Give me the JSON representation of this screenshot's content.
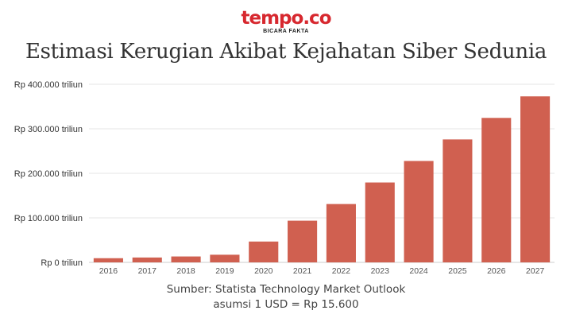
{
  "brand": {
    "name": "tempo.co",
    "tagline": "BICARA FAKTA"
  },
  "chart_data": {
    "type": "bar",
    "title": "Estimasi Kerugian Akibat Kejahatan Siber Sedunia",
    "categories": [
      "2016",
      "2017",
      "2018",
      "2019",
      "2020",
      "2021",
      "2022",
      "2023",
      "2024",
      "2025",
      "2026",
      "2027"
    ],
    "values": [
      9360,
      10920,
      13260,
      17160,
      46800,
      93600,
      131040,
      179400,
      227760,
      276120,
      324480,
      372840
    ],
    "ylim": [
      0,
      400000
    ],
    "yticks": [
      0,
      100000,
      200000,
      300000,
      400000
    ],
    "ytick_labels": [
      "Rp 0 triliun",
      "Rp 100.000 triliun",
      "Rp 200.000 triliun",
      "Rp 300.000 triliun",
      "Rp 400.000 triliun"
    ],
    "xlabel": "",
    "ylabel": "",
    "grid": true,
    "bar_color": "#d06050"
  },
  "source": {
    "line1": "Sumber: Statista Technology Market Outlook",
    "line2": "asumsi 1 USD = Rp 15.600"
  }
}
